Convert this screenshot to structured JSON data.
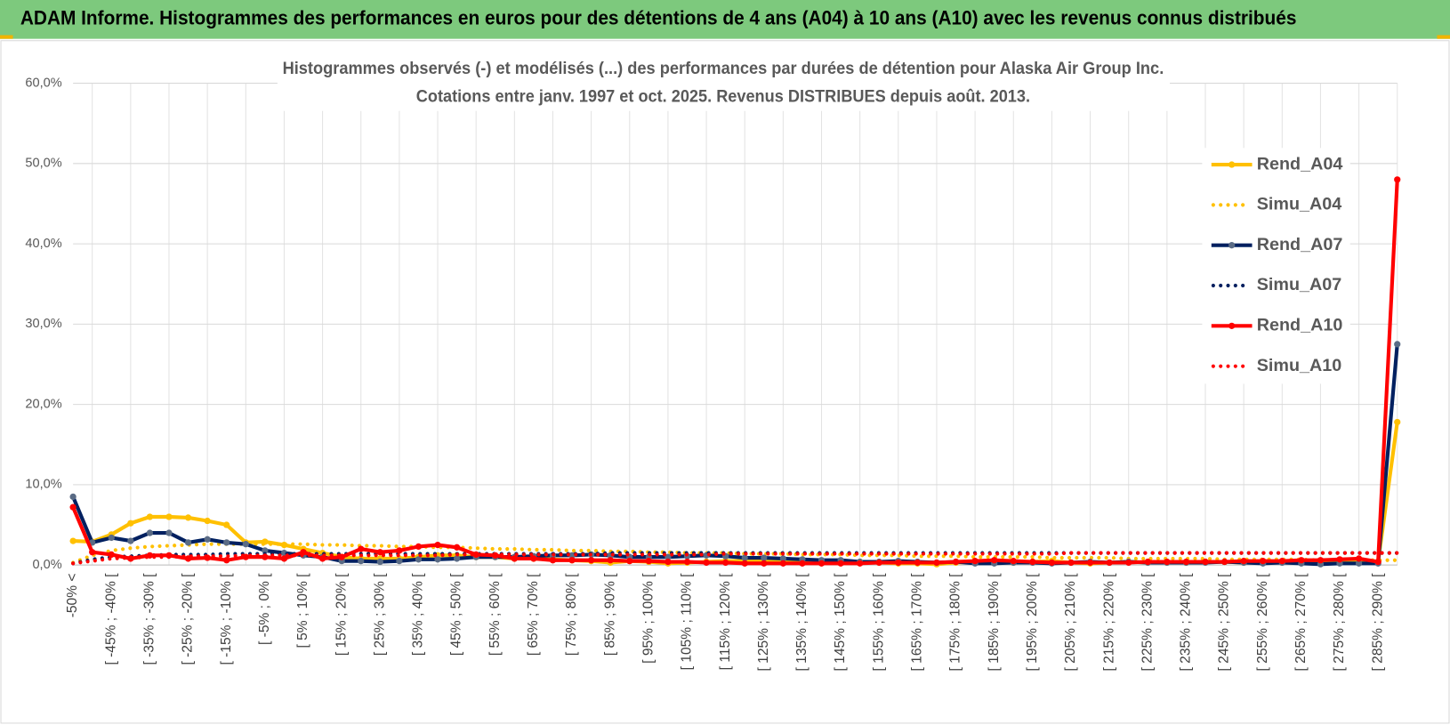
{
  "header": {
    "title": "ADAM Informe. Histogrammes des performances en euros pour des détentions de 4 ans (A04) à 10 ans (A10) avec les revenus connus distribués"
  },
  "chart_data": {
    "type": "line",
    "title": "Histogrammes observés (-) et modélisés (...) des performances par durées de détention pour Alaska Air Group Inc.",
    "subtitle": "Cotations entre janv. 1997 et oct. 2025. Revenus DISTRIBUES depuis août. 2013.",
    "categories": [
      "-50% <",
      null,
      "[ -45% ; -40% [",
      null,
      "[ -35% ; -30% [",
      null,
      "[ -25% ; -20% [",
      null,
      "[ -15% ; -10% [",
      null,
      "[ -5% ; 0% [",
      null,
      "[ 5% ; 10% [",
      null,
      "[ 15% ; 20% [",
      null,
      "[ 25% ; 30% [",
      null,
      "[ 35% ; 40% [",
      null,
      "[ 45% ; 50% [",
      null,
      "[ 55% ; 60% [",
      null,
      "[ 65% ; 70% [",
      null,
      "[ 75% ; 80% [",
      null,
      "[ 85% ; 90% [",
      null,
      "[ 95% ; 100% [",
      null,
      "[ 105% ; 110% [",
      null,
      "[ 115% ; 120% [",
      null,
      "[ 125% ; 130% [",
      null,
      "[ 135% ; 140% [",
      null,
      "[ 145% ; 150% [",
      null,
      "[ 155% ; 160% [",
      null,
      "[ 165% ; 170% [",
      null,
      "[ 175% ; 180% [",
      null,
      "[ 185% ; 190% [",
      null,
      "[ 195% ; 200% [",
      null,
      "[ 205% ; 210% [",
      null,
      "[ 215% ; 220% [",
      null,
      "[ 225% ; 230% [",
      null,
      "[ 235% ; 240% [",
      null,
      "[ 245% ; 250% [",
      null,
      "[ 255% ; 260% [",
      null,
      "[ 265% ; 270% [",
      null,
      "[ 275% ; 280% [",
      null,
      "[ 285% ; 290% [",
      null
    ],
    "series": [
      {
        "name": "Rend_A04",
        "color": "#ffc000",
        "style": "solid",
        "values": [
          3.0,
          2.9,
          3.8,
          5.2,
          6.0,
          6.0,
          5.9,
          5.5,
          5.0,
          2.8,
          2.9,
          2.5,
          2.0,
          1.5,
          1.0,
          0.8,
          0.8,
          0.8,
          1.0,
          1.2,
          1.2,
          1.0,
          1.0,
          0.8,
          0.8,
          0.7,
          0.6,
          0.5,
          0.3,
          0.5,
          0.4,
          0.2,
          0.3,
          0.4,
          0.5,
          0.5,
          0.6,
          0.6,
          0.5,
          0.5,
          0.4,
          0.4,
          0.3,
          0.2,
          0.2,
          0.1,
          0.3,
          0.4,
          0.4,
          0.3,
          0.4,
          0.5,
          0.3,
          0.2,
          0.3,
          0.4,
          0.3,
          0.3,
          0.3,
          0.4,
          0.4,
          0.3,
          0.3,
          0.4,
          0.4,
          0.5,
          0.5,
          0.5,
          0.4,
          17.8
        ]
      },
      {
        "name": "Simu_A04",
        "color": "#ffc000",
        "style": "dotted",
        "values": [
          0.3,
          1.2,
          1.8,
          2.1,
          2.3,
          2.4,
          2.5,
          2.6,
          2.6,
          2.6,
          2.6,
          2.6,
          2.6,
          2.5,
          2.5,
          2.4,
          2.4,
          2.3,
          2.3,
          2.2,
          2.2,
          2.1,
          2.0,
          2.0,
          1.9,
          1.9,
          1.8,
          1.8,
          1.7,
          1.7,
          1.6,
          1.6,
          1.5,
          1.5,
          1.5,
          1.4,
          1.4,
          1.4,
          1.3,
          1.3,
          1.3,
          1.2,
          1.2,
          1.2,
          1.1,
          1.1,
          1.1,
          1.0,
          1.0,
          1.0,
          1.0,
          0.9,
          0.9,
          0.9,
          0.9,
          0.8,
          0.8,
          0.8,
          0.8,
          0.8,
          0.7,
          0.7,
          0.7,
          0.7,
          0.7,
          0.6,
          0.6,
          0.6,
          0.6,
          0.6
        ]
      },
      {
        "name": "Rend_A07",
        "color": "#002060",
        "style": "solid",
        "values": [
          8.5,
          2.8,
          3.4,
          3.0,
          4.0,
          4.0,
          2.8,
          3.2,
          2.8,
          2.6,
          1.8,
          1.5,
          1.2,
          1.0,
          0.5,
          0.5,
          0.4,
          0.5,
          0.7,
          0.7,
          0.8,
          1.0,
          1.0,
          1.0,
          1.1,
          1.2,
          1.2,
          1.3,
          1.2,
          1.0,
          1.0,
          1.0,
          1.1,
          1.2,
          1.1,
          0.9,
          0.9,
          0.8,
          0.7,
          0.6,
          0.6,
          0.4,
          0.4,
          0.5,
          0.4,
          0.3,
          0.4,
          0.2,
          0.2,
          0.3,
          0.3,
          0.2,
          0.3,
          0.4,
          0.3,
          0.4,
          0.3,
          0.3,
          0.3,
          0.3,
          0.4,
          0.3,
          0.2,
          0.3,
          0.2,
          0.1,
          0.2,
          0.2,
          0.2,
          27.5
        ]
      },
      {
        "name": "Simu_A07",
        "color": "#002060",
        "style": "dotted",
        "values": [
          0.2,
          0.7,
          1.0,
          1.1,
          1.2,
          1.3,
          1.3,
          1.3,
          1.4,
          1.4,
          1.4,
          1.4,
          1.4,
          1.4,
          1.4,
          1.4,
          1.4,
          1.4,
          1.4,
          1.4,
          1.4,
          1.4,
          1.4,
          1.4,
          1.4,
          1.4,
          1.4,
          1.4,
          1.5,
          1.5,
          1.5,
          1.5,
          1.5,
          1.5,
          1.5,
          1.5,
          1.5,
          1.5,
          1.5,
          1.5,
          1.5,
          1.5,
          1.5,
          1.5,
          1.5,
          1.5,
          1.5,
          1.5,
          1.5,
          1.5,
          1.5,
          1.5,
          1.5,
          1.5,
          1.5,
          1.5,
          1.5,
          1.5,
          1.5,
          1.5,
          1.5,
          1.5,
          1.5,
          1.5,
          1.5,
          1.5,
          1.5,
          1.5,
          1.5,
          1.5
        ]
      },
      {
        "name": "Rend_A10",
        "color": "#ff0000",
        "style": "solid",
        "values": [
          7.2,
          1.6,
          1.3,
          0.8,
          1.2,
          1.2,
          0.8,
          0.9,
          0.6,
          1.0,
          1.0,
          0.8,
          1.6,
          0.8,
          1.0,
          2.0,
          1.6,
          1.8,
          2.3,
          2.5,
          2.2,
          1.3,
          1.2,
          0.8,
          0.8,
          0.6,
          0.6,
          0.6,
          0.6,
          0.5,
          0.5,
          0.4,
          0.4,
          0.3,
          0.3,
          0.2,
          0.2,
          0.2,
          0.2,
          0.2,
          0.2,
          0.2,
          0.3,
          0.3,
          0.3,
          0.3,
          0.4,
          0.5,
          0.6,
          0.5,
          0.4,
          0.3,
          0.3,
          0.3,
          0.3,
          0.3,
          0.4,
          0.4,
          0.4,
          0.4,
          0.4,
          0.5,
          0.5,
          0.5,
          0.6,
          0.6,
          0.7,
          0.8,
          0.4,
          48.0
        ]
      },
      {
        "name": "Simu_A10",
        "color": "#ff0000",
        "style": "dotted",
        "values": [
          0.2,
          0.5,
          0.8,
          0.9,
          1.0,
          1.0,
          1.1,
          1.1,
          1.1,
          1.2,
          1.2,
          1.2,
          1.2,
          1.2,
          1.2,
          1.2,
          1.2,
          1.2,
          1.2,
          1.2,
          1.3,
          1.3,
          1.3,
          1.3,
          1.3,
          1.3,
          1.3,
          1.3,
          1.3,
          1.3,
          1.3,
          1.3,
          1.3,
          1.3,
          1.4,
          1.4,
          1.4,
          1.4,
          1.4,
          1.4,
          1.4,
          1.4,
          1.4,
          1.4,
          1.4,
          1.4,
          1.4,
          1.4,
          1.4,
          1.4,
          1.4,
          1.4,
          1.5,
          1.5,
          1.5,
          1.5,
          1.5,
          1.5,
          1.5,
          1.5,
          1.5,
          1.5,
          1.5,
          1.5,
          1.5,
          1.5,
          1.5,
          1.5,
          1.5,
          1.5
        ]
      }
    ],
    "ylim": [
      0,
      60
    ],
    "yticks": [
      {
        "value": 0,
        "label": "0,0%"
      },
      {
        "value": 10,
        "label": "10,0%"
      },
      {
        "value": 20,
        "label": "20,0%"
      },
      {
        "value": 30,
        "label": "30,0%"
      },
      {
        "value": 40,
        "label": "40,0%"
      },
      {
        "value": 50,
        "label": "50,0%"
      },
      {
        "value": 60,
        "label": "60,0%"
      }
    ],
    "grid": true,
    "legend": "right"
  }
}
